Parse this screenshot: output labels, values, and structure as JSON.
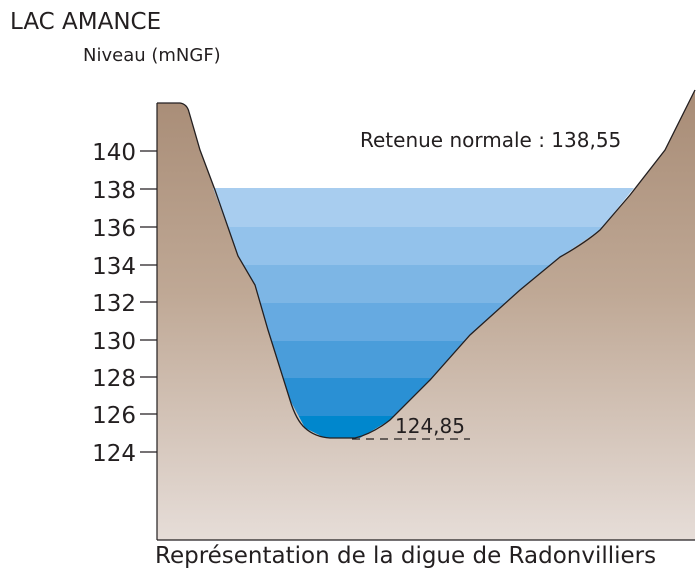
{
  "title": "LAC AMANCE",
  "y_axis_label": "Niveau (mNGF)",
  "caption": "Représentation de la digue de Radonvilliers",
  "normal_level_label": "Retenue normale : 138,55",
  "bottom_level_label": "124,85",
  "chart_data": {
    "type": "area",
    "title": "LAC AMANCE",
    "ylabel": "Niveau (mNGF)",
    "y_ticks": [
      "124",
      "126",
      "128",
      "130",
      "132",
      "134",
      "136",
      "138",
      "140"
    ],
    "y_tick_values": [
      124,
      126,
      128,
      130,
      132,
      134,
      136,
      138,
      140
    ],
    "normal_level": 138.55,
    "bottom_level": 124.85,
    "annotations": [
      "Retenue normale : 138,55",
      "124,85"
    ]
  },
  "colors": {
    "ground_top": "#b09580",
    "ground_bottom": "#e4dbd6",
    "water_bands": [
      "#0088d0",
      "#2894d8",
      "#4aa2dd",
      "#68b0e1",
      "#7db9e4",
      "#93c5ea",
      "#a8d0f0"
    ]
  }
}
